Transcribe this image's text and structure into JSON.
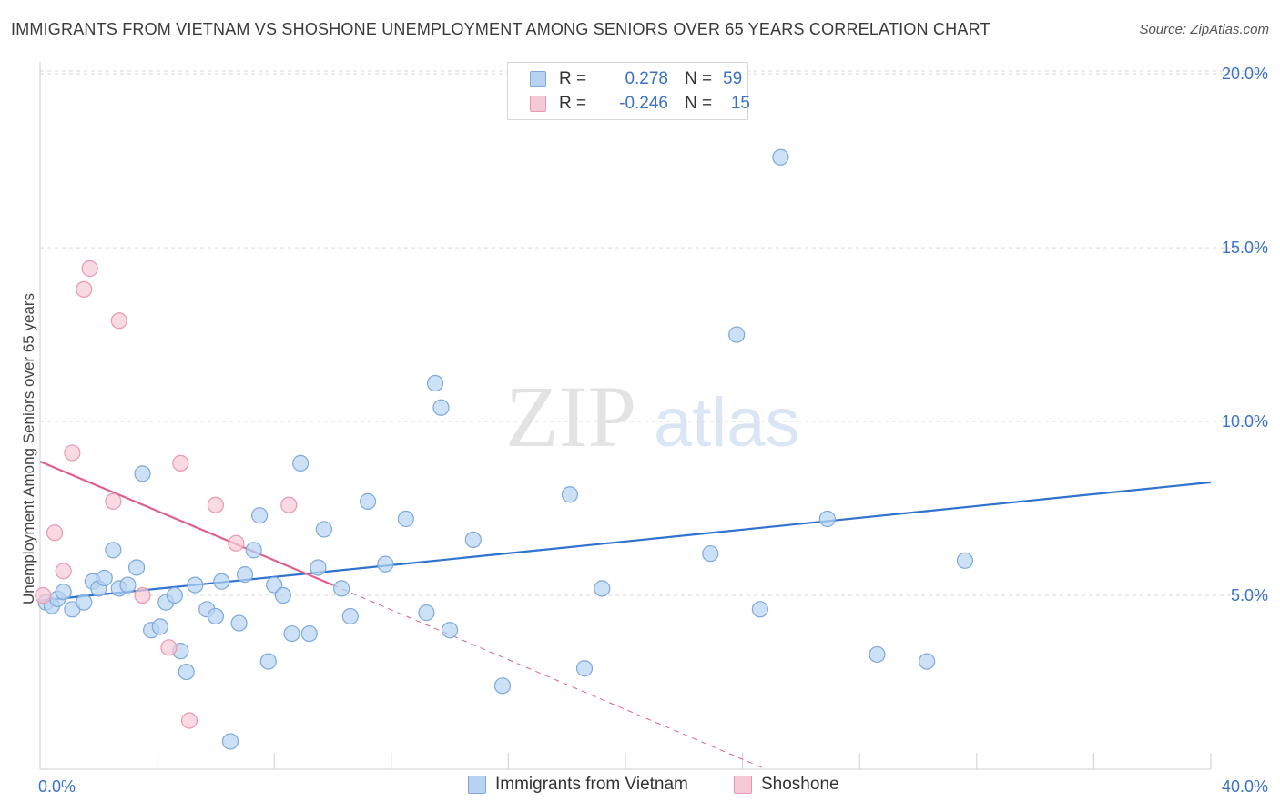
{
  "header": {
    "title": "IMMIGRANTS FROM VIETNAM VS SHOSHONE UNEMPLOYMENT AMONG SENIORS OVER 65 YEARS CORRELATION CHART",
    "source": "Source: ZipAtlas.com"
  },
  "legend": {
    "series1": {
      "r_label": "R =",
      "r_value": "0.278",
      "n_label": "N =",
      "n_value": "59"
    },
    "series2": {
      "r_label": "R =",
      "r_value": "-0.246",
      "n_label": "N =",
      "n_value": "15"
    }
  },
  "watermark": {
    "zip": "ZIP",
    "atlas": "atlas"
  },
  "colors": {
    "blue_fill": "#b8d4f2",
    "blue_stroke": "#7ea9d8",
    "blue_line": "#2f72cf",
    "pink_fill": "#f6c9d6",
    "pink_stroke": "#e899b0",
    "pink_line": "#e0608a",
    "axis_text": "#3a72c5",
    "grid": "#d9d9d9"
  },
  "chart_data": {
    "type": "scatter",
    "title": "IMMIGRANTS FROM VIETNAM VS SHOSHONE UNEMPLOYMENT AMONG SENIORS OVER 65 YEARS CORRELATION CHART",
    "xlabel": "",
    "ylabel": "Unemployment Among Seniors over 65 years",
    "xlim": [
      0,
      40
    ],
    "ylim": [
      0,
      20.5
    ],
    "x_tick_labels": [
      {
        "value": 0,
        "label": "0.0%"
      },
      {
        "value": 40,
        "label": "40.0%"
      }
    ],
    "y_tick_labels": [
      {
        "value": 5,
        "label": "5.0%"
      },
      {
        "value": 10,
        "label": "10.0%"
      },
      {
        "value": 15,
        "label": "15.0%"
      },
      {
        "value": 20,
        "label": "20.0%"
      }
    ],
    "series": [
      {
        "name": "Immigrants from Vietnam",
        "color": "#b8d4f2",
        "points": [
          [
            0.2,
            4.8
          ],
          [
            0.4,
            4.7
          ],
          [
            0.6,
            4.9
          ],
          [
            0.8,
            5.1
          ],
          [
            1.1,
            4.6
          ],
          [
            1.5,
            4.8
          ],
          [
            1.8,
            5.4
          ],
          [
            2.0,
            5.2
          ],
          [
            2.2,
            5.5
          ],
          [
            2.5,
            6.3
          ],
          [
            2.7,
            5.2
          ],
          [
            3.0,
            5.3
          ],
          [
            3.3,
            5.8
          ],
          [
            3.5,
            8.5
          ],
          [
            3.8,
            4.0
          ],
          [
            4.1,
            4.1
          ],
          [
            4.3,
            4.8
          ],
          [
            4.6,
            5.0
          ],
          [
            4.8,
            3.4
          ],
          [
            5.0,
            2.8
          ],
          [
            5.3,
            5.3
          ],
          [
            5.7,
            4.6
          ],
          [
            6.0,
            4.4
          ],
          [
            6.2,
            5.4
          ],
          [
            6.5,
            0.8
          ],
          [
            6.8,
            4.2
          ],
          [
            7.0,
            5.6
          ],
          [
            7.3,
            6.3
          ],
          [
            7.5,
            7.3
          ],
          [
            7.8,
            3.1
          ],
          [
            8.0,
            5.3
          ],
          [
            8.3,
            5.0
          ],
          [
            8.6,
            3.9
          ],
          [
            8.9,
            8.8
          ],
          [
            9.2,
            3.9
          ],
          [
            9.5,
            5.8
          ],
          [
            9.7,
            6.9
          ],
          [
            10.3,
            5.2
          ],
          [
            10.6,
            4.4
          ],
          [
            11.2,
            7.7
          ],
          [
            11.8,
            5.9
          ],
          [
            12.5,
            7.2
          ],
          [
            13.2,
            4.5
          ],
          [
            13.5,
            11.1
          ],
          [
            13.7,
            10.4
          ],
          [
            14.0,
            4.0
          ],
          [
            14.8,
            6.6
          ],
          [
            15.8,
            2.4
          ],
          [
            18.1,
            7.9
          ],
          [
            18.6,
            2.9
          ],
          [
            19.2,
            5.2
          ],
          [
            22.9,
            6.2
          ],
          [
            23.8,
            12.5
          ],
          [
            24.6,
            4.6
          ],
          [
            25.3,
            17.6
          ],
          [
            26.9,
            7.2
          ],
          [
            28.6,
            3.3
          ],
          [
            30.3,
            3.1
          ],
          [
            31.6,
            6.0
          ]
        ]
      },
      {
        "name": "Shoshone",
        "color": "#f6c9d6",
        "points": [
          [
            0.1,
            5.0
          ],
          [
            0.5,
            6.8
          ],
          [
            0.8,
            5.7
          ],
          [
            1.1,
            9.1
          ],
          [
            1.5,
            13.8
          ],
          [
            1.7,
            14.4
          ],
          [
            2.5,
            7.7
          ],
          [
            2.7,
            12.9
          ],
          [
            3.5,
            5.0
          ],
          [
            4.4,
            3.5
          ],
          [
            4.8,
            8.8
          ],
          [
            5.1,
            1.4
          ],
          [
            6.0,
            7.6
          ],
          [
            6.7,
            6.5
          ],
          [
            8.5,
            7.6
          ]
        ]
      }
    ],
    "trendlines": [
      {
        "series": "Immigrants from Vietnam",
        "x": [
          0,
          40
        ],
        "y": [
          4.85,
          8.25
        ],
        "style": "solid"
      },
      {
        "series": "Shoshone",
        "x": [
          0,
          10
        ],
        "y": [
          8.85,
          5.3
        ],
        "style": "solid"
      },
      {
        "series": "Shoshone",
        "x": [
          10,
          24.8
        ],
        "y": [
          5.3,
          0.0
        ],
        "style": "dashed"
      }
    ],
    "grid": true,
    "legend_position": "top-center"
  }
}
